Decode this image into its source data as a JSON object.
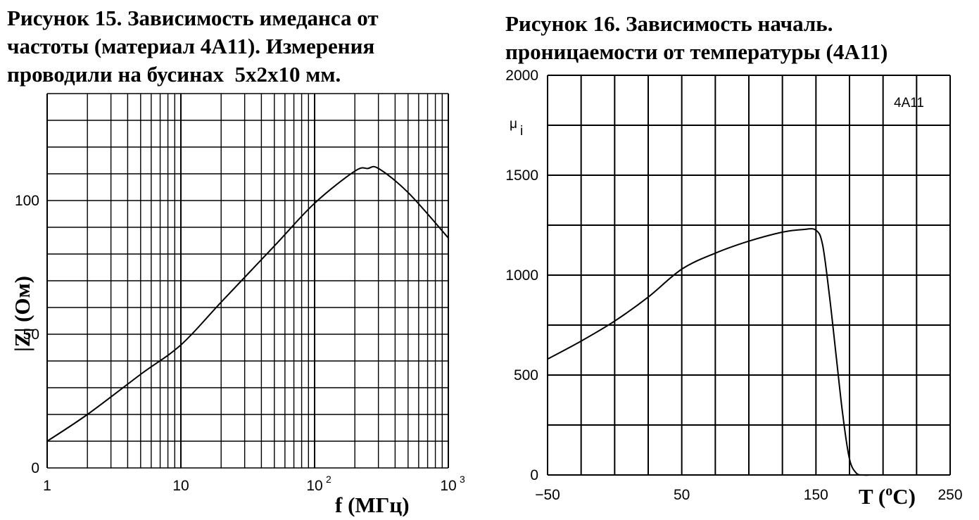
{
  "chart_data": [
    {
      "type": "line",
      "title": "Рисунок 15. Зависимость имеданса от\nчастоты (материал 4А11). Измерения\nпроводили на бусинах  5х2х10 мм.",
      "xlabel": "f (МГц)",
      "ylabel": "|Z| (Ом)",
      "xscale": "log",
      "xlim": [
        1,
        1000
      ],
      "ylim": [
        0,
        140
      ],
      "grid": true,
      "x_ticks": [
        {
          "base": "1",
          "exp": ""
        },
        {
          "base": "10",
          "exp": ""
        },
        {
          "base": "10",
          "exp": "2"
        },
        {
          "base": "10",
          "exp": "3"
        }
      ],
      "y_ticks": [
        "0",
        "50",
        "100"
      ],
      "series": [
        {
          "x": [
            1,
            2,
            5,
            10,
            20,
            50,
            100,
            200,
            250,
            300,
            500,
            1000
          ],
          "y": [
            10,
            20,
            35,
            46,
            62,
            83,
            99,
            111,
            112,
            112,
            103,
            86
          ]
        }
      ]
    },
    {
      "type": "line",
      "title": "Рисунок 16. Зависимость началь.\nпроницаемости от температуры (4А11)",
      "xlabel": "T (°C)",
      "ylabel": "μi",
      "annotation": "4A11",
      "xlim": [
        -50,
        250
      ],
      "ylim": [
        0,
        2000
      ],
      "grid": true,
      "x_ticks": [
        "−50",
        "50",
        "150",
        "250"
      ],
      "y_ticks": [
        "0",
        "500",
        "1000",
        "1500",
        "2000"
      ],
      "series": [
        {
          "x": [
            -50,
            -25,
            0,
            25,
            50,
            75,
            100,
            125,
            140,
            150,
            155,
            160,
            165,
            170,
            175,
            180,
            185,
            190
          ],
          "y": [
            580,
            670,
            770,
            890,
            1030,
            1110,
            1170,
            1215,
            1228,
            1225,
            1150,
            900,
            600,
            300,
            80,
            10,
            0,
            0
          ]
        }
      ]
    }
  ]
}
